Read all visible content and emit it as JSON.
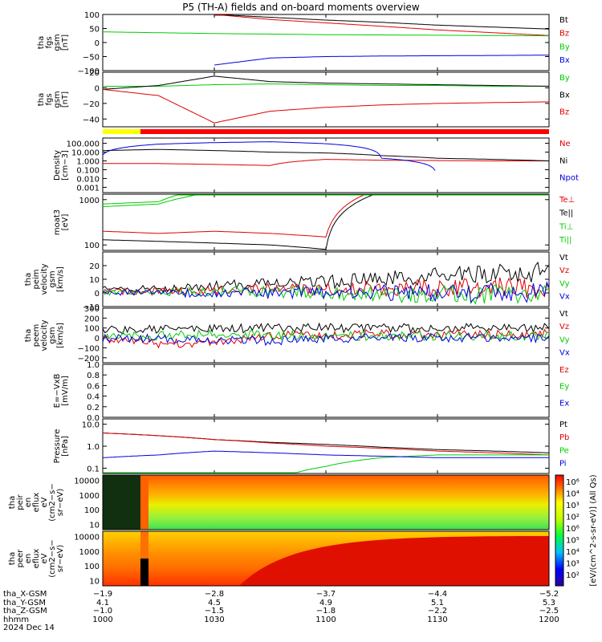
{
  "title": "P5 (TH-A) fields and on-board moments overview",
  "colors": {
    "black": "#000000",
    "red": "#e00000",
    "green": "#00cc00",
    "blue": "#0000dd"
  },
  "panels": [
    {
      "id": "p1",
      "ylabel": [
        "tha",
        "fgs",
        "gsm",
        "[nT]"
      ],
      "ylim": [
        -100,
        100
      ],
      "ticks": [
        "100",
        "50",
        "0",
        "−50",
        "−100"
      ],
      "legend": [
        {
          "t": "Bt",
          "c": "black"
        },
        {
          "t": "Bz",
          "c": "red"
        },
        {
          "t": "By",
          "c": "green"
        },
        {
          "t": "Bx",
          "c": "blue"
        }
      ]
    },
    {
      "id": "p2",
      "ylabel": [
        "tha",
        "fgs",
        "gsm",
        "[nT]"
      ],
      "ylim": [
        -50,
        20
      ],
      "ticks": [
        "20",
        "0",
        "−20",
        "−40"
      ],
      "legend": [
        {
          "t": "By",
          "c": "green"
        },
        {
          "t": "Bx",
          "c": "black"
        },
        {
          "t": "Bz",
          "c": "red"
        }
      ]
    },
    {
      "id": "p3",
      "ylabel": [
        "Density",
        "[cm−3]"
      ],
      "log": true,
      "ticks": [
        "100.000",
        "10.000",
        "1.000",
        "0.100",
        "0.010",
        "0.001"
      ],
      "legend": [
        {
          "t": "Ne",
          "c": "red"
        },
        {
          "t": "Ni",
          "c": "black"
        },
        {
          "t": "Npot",
          "c": "blue"
        }
      ]
    },
    {
      "id": "p4",
      "ylabel": [
        "moat3",
        "[eV]"
      ],
      "log": true,
      "ticks": [
        "1000",
        "100"
      ],
      "legend": [
        {
          "t": "Te⊥",
          "c": "red"
        },
        {
          "t": "Te||",
          "c": "black"
        },
        {
          "t": "Ti⊥",
          "c": "green"
        },
        {
          "t": "Ti||",
          "c": "green"
        }
      ]
    },
    {
      "id": "p5",
      "ylabel": [
        "tha",
        "peim",
        "velocity",
        "gsm",
        "[km/s]"
      ],
      "ylim": [
        -10,
        30
      ],
      "ticks": [
        "20",
        "10",
        "0",
        "−10"
      ],
      "legend": [
        {
          "t": "Vt",
          "c": "black"
        },
        {
          "t": "Vz",
          "c": "red"
        },
        {
          "t": "Vy",
          "c": "green"
        },
        {
          "t": "Vx",
          "c": "blue"
        }
      ]
    },
    {
      "id": "p6",
      "ylabel": [
        "tha",
        "peem",
        "velocity",
        "gsm",
        "[km/s]"
      ],
      "ylim": [
        -250,
        300
      ],
      "ticks": [
        "300",
        "200",
        "100",
        "0",
        "−100",
        "−200"
      ],
      "legend": [
        {
          "t": "Vt",
          "c": "black"
        },
        {
          "t": "Vz",
          "c": "red"
        },
        {
          "t": "Vy",
          "c": "green"
        },
        {
          "t": "Vx",
          "c": "blue"
        }
      ]
    },
    {
      "id": "p7",
      "ylabel": [
        "E=−VxB",
        "[mV/m]"
      ],
      "ylim": [
        0,
        1
      ],
      "ticks": [
        "1.0",
        "0.8",
        "0.6",
        "0.4",
        "0.2",
        "0.0"
      ],
      "legend": [
        {
          "t": "Ez",
          "c": "red"
        },
        {
          "t": "Ey",
          "c": "green"
        },
        {
          "t": "Ex",
          "c": "blue"
        }
      ]
    },
    {
      "id": "p8",
      "ylabel": [
        "Pressure",
        "[nPa]"
      ],
      "log": true,
      "ticks": [
        "10.0",
        "1.0",
        "0.1"
      ],
      "legend": [
        {
          "t": "Pt",
          "c": "black"
        },
        {
          "t": "Pb",
          "c": "red"
        },
        {
          "t": "Pe",
          "c": "green"
        },
        {
          "t": "Pi",
          "c": "blue"
        }
      ]
    },
    {
      "id": "p9",
      "ylabel": [
        "tha",
        "peir",
        "en",
        "eflux",
        "eV",
        "(cm2−s−",
        "sr−eV)"
      ],
      "log": true,
      "ticks": [
        "10000",
        "1000",
        "100",
        "10"
      ]
    },
    {
      "id": "p10",
      "ylabel": [
        "tha",
        "peer",
        "en",
        "eflux",
        "eV",
        "(cm2−s−",
        "sr−eV)"
      ],
      "log": true,
      "ticks": [
        "10000",
        "1000",
        "100",
        "10"
      ]
    }
  ],
  "colorbar": {
    "label": "[eV/(cm^2-s-sr-eV)] (All Qs)",
    "ticks": [
      "10⁶",
      "10⁴",
      "10³",
      "10²",
      "10⁶",
      "10⁵",
      "10⁴",
      "10³",
      "10²"
    ]
  },
  "chart_data": {
    "type": "line",
    "title": "P5 (TH-A) fields and on-board moments overview",
    "date": "2024 Dec 14",
    "x_ticks": [
      "1000",
      "1030",
      "1100",
      "1130",
      "1200"
    ],
    "footer_rows": [
      {
        "label": "tha_X-GSM",
        "values": [
          "−1.9",
          "−2.8",
          "−3.7",
          "−4.4",
          "−5.2"
        ]
      },
      {
        "label": "tha_Y-GSM",
        "values": [
          "4.1",
          "4.5",
          "4.9",
          "5.1",
          "5.3"
        ]
      },
      {
        "label": "tha_Z-GSM",
        "values": [
          "−1.0",
          "−1.5",
          "−1.8",
          "−2.2",
          "−2.5"
        ]
      },
      {
        "label": "hhmm",
        "values": [
          "1000",
          "1030",
          "1100",
          "1130",
          "1200"
        ]
      },
      {
        "label": "2024 Dec 14",
        "values": []
      }
    ],
    "series": [
      {
        "panel": "p1",
        "name": "Bt",
        "values": [
          null,
          null,
          100,
          90,
          80,
          72,
          62,
          55,
          48
        ]
      },
      {
        "panel": "p1",
        "name": "Bz",
        "values": [
          null,
          null,
          100,
          82,
          70,
          58,
          45,
          35,
          25
        ]
      },
      {
        "panel": "p1",
        "name": "By",
        "values": [
          38,
          35,
          32,
          30,
          28,
          27,
          26,
          25,
          24
        ]
      },
      {
        "panel": "p1",
        "name": "Bx",
        "values": [
          null,
          null,
          -80,
          -55,
          -50,
          -48,
          -47,
          -46,
          -45
        ]
      },
      {
        "panel": "p2",
        "name": "By",
        "values": [
          2,
          2,
          4,
          5,
          4,
          3,
          3,
          2,
          2
        ]
      },
      {
        "panel": "p2",
        "name": "Bx",
        "values": [
          -2,
          3,
          15,
          8,
          6,
          5,
          4,
          3,
          2
        ]
      },
      {
        "panel": "p2",
        "name": "Bz",
        "values": [
          -2,
          -10,
          -45,
          -30,
          -25,
          -22,
          -20,
          -19,
          -18
        ]
      },
      {
        "panel": "p3",
        "name": "Ne",
        "values": [
          0.5,
          0.5,
          0.4,
          0.3,
          1.5,
          1.2,
          1.1,
          1.0,
          1.0
        ]
      },
      {
        "panel": "p3",
        "name": "Ni",
        "values": [
          15,
          20,
          15,
          10,
          8,
          4,
          2,
          1.5,
          1.0
        ]
      },
      {
        "panel": "p3",
        "name": "Npot",
        "values": [
          5,
          80,
          120,
          150,
          90,
          2,
          0.002,
          null,
          null
        ]
      },
      {
        "panel": "p4",
        "name": "Te⊥",
        "values": [
          200,
          180,
          200,
          180,
          150,
          1800,
          2000,
          2100,
          2100
        ]
      },
      {
        "panel": "p4",
        "name": "Te||",
        "values": [
          130,
          120,
          110,
          100,
          80,
          1500,
          1800,
          1900,
          1900
        ]
      },
      {
        "panel": "p4",
        "name": "Ti⊥",
        "values": [
          800,
          900,
          2000,
          3000,
          3500,
          3500,
          3500,
          3200,
          3000
        ]
      },
      {
        "panel": "p4",
        "name": "Ti||",
        "values": [
          700,
          800,
          1500,
          2500,
          3000,
          3000,
          3000,
          2800,
          2800
        ]
      },
      {
        "panel": "p5",
        "name": "Vt",
        "values": [
          3,
          3,
          5,
          8,
          8,
          10,
          12,
          14,
          15
        ]
      },
      {
        "panel": "p5",
        "name": "Vz",
        "values": [
          1,
          1,
          2,
          3,
          3,
          3,
          4,
          4,
          4
        ]
      },
      {
        "panel": "p5",
        "name": "Vy",
        "values": [
          0,
          0,
          1,
          1,
          0,
          -1,
          -1,
          -1,
          -2
        ]
      },
      {
        "panel": "p5",
        "name": "Vx",
        "values": [
          0,
          0,
          0,
          0,
          0,
          0,
          0,
          0,
          0
        ]
      },
      {
        "panel": "p6",
        "name": "Vt",
        "values": [
          80,
          90,
          90,
          100,
          100,
          100,
          100,
          100,
          100
        ]
      },
      {
        "panel": "p6",
        "name": "Vz",
        "values": [
          -20,
          -60,
          -40,
          20,
          30,
          40,
          40,
          40,
          40
        ]
      },
      {
        "panel": "p6",
        "name": "Vy",
        "values": [
          30,
          20,
          40,
          30,
          20,
          20,
          20,
          20,
          20
        ]
      },
      {
        "panel": "p6",
        "name": "Vx",
        "values": [
          0,
          -10,
          -20,
          -30,
          -10,
          0,
          0,
          0,
          0
        ]
      },
      {
        "panel": "p8",
        "name": "Pt",
        "values": [
          4.0,
          3.0,
          2.0,
          1.5,
          1.2,
          0.9,
          0.7,
          0.6,
          0.5
        ]
      },
      {
        "panel": "p8",
        "name": "Pb",
        "values": [
          4.0,
          3.0,
          2.0,
          1.4,
          1.0,
          0.8,
          0.6,
          0.5,
          0.4
        ]
      },
      {
        "panel": "p8",
        "name": "Pe",
        "values": [
          0.03,
          0.02,
          0.015,
          0.012,
          0.12,
          0.3,
          0.4,
          0.4,
          0.4
        ]
      },
      {
        "panel": "p8",
        "name": "Pi",
        "values": [
          0.3,
          0.4,
          0.6,
          0.5,
          0.4,
          0.35,
          0.3,
          0.3,
          0.3
        ]
      }
    ]
  }
}
